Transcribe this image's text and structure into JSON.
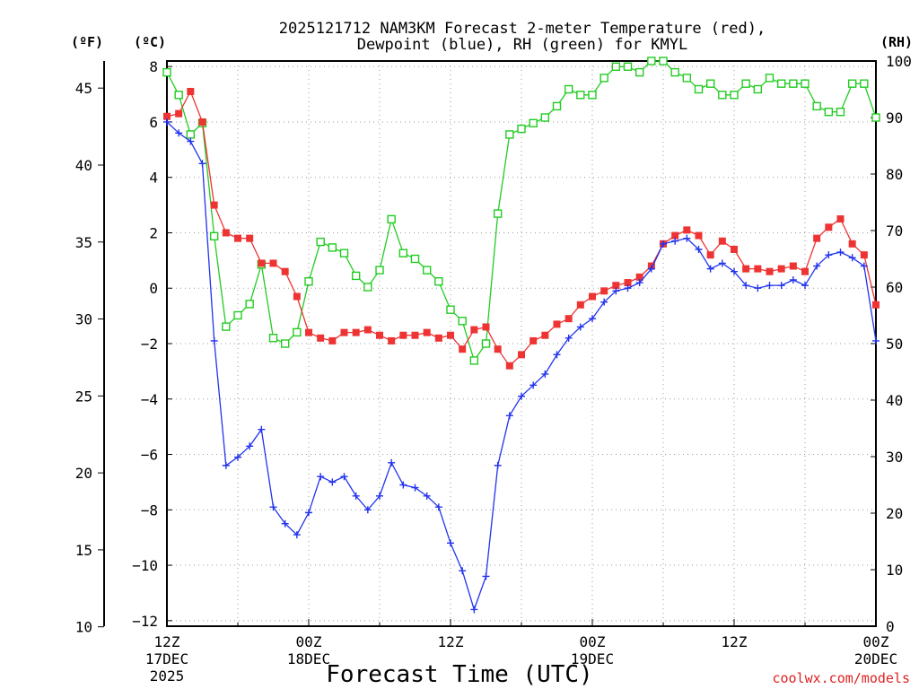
{
  "chart_data": {
    "type": "line",
    "title_line1": "2025121712 NAM3KM Forecast 2-meter Temperature (red),",
    "title_line2": "Dewpoint (blue), RH (green) for KMYL",
    "xlabel": "Forecast Time (UTC)",
    "credit": "coolwx.com/models",
    "left_outer_unit": "(ºF)",
    "left_inner_unit": "(ºC)",
    "right_unit": "(RH)",
    "x_range_hours": [
      0,
      60
    ],
    "celsius_ylim": [
      -12.2,
      8.2
    ],
    "fahrenheit_ylim": [
      10.04,
      46.76
    ],
    "rh_ylim": [
      0,
      100
    ],
    "celsius_ticks": [
      "8",
      "6",
      "4",
      "2",
      "0",
      "−2",
      "−4",
      "−6",
      "−8",
      "−10",
      "−12"
    ],
    "celsius_tick_values": [
      8,
      6,
      4,
      2,
      0,
      -2,
      -4,
      -6,
      -8,
      -10,
      -12
    ],
    "fahrenheit_ticks": [
      "45",
      "40",
      "35",
      "30",
      "25",
      "20",
      "15",
      "10"
    ],
    "fahrenheit_tick_values": [
      45,
      40,
      35,
      30,
      25,
      20,
      15,
      10
    ],
    "rh_ticks": [
      "100",
      "90",
      "80",
      "70",
      "60",
      "50",
      "40",
      "30",
      "20",
      "10",
      "0"
    ],
    "rh_tick_values": [
      100,
      90,
      80,
      70,
      60,
      50,
      40,
      30,
      20,
      10,
      0
    ],
    "x_ticks": [
      {
        "hour": 0,
        "line1": "12Z",
        "line2": "17DEC",
        "line3": "2025"
      },
      {
        "hour": 12,
        "line1": "00Z",
        "line2": "18DEC",
        "line3": ""
      },
      {
        "hour": 24,
        "line1": "12Z",
        "line2": "",
        "line3": ""
      },
      {
        "hour": 36,
        "line1": "00Z",
        "line2": "19DEC",
        "line3": ""
      },
      {
        "hour": 48,
        "line1": "12Z",
        "line2": "",
        "line3": ""
      },
      {
        "hour": 60,
        "line1": "00Z",
        "line2": "20DEC",
        "line3": ""
      }
    ],
    "x_minor_hours": [
      6,
      18,
      30,
      42,
      54
    ],
    "series": [
      {
        "name": "2-meter Temperature",
        "unit": "degC",
        "color": "#ee3333",
        "marker": "filled-square",
        "hours": [
          0,
          1,
          2,
          3,
          4,
          5,
          6,
          7,
          8,
          9,
          10,
          11,
          12,
          13,
          14,
          15,
          16,
          17,
          18,
          19,
          20,
          21,
          22,
          23,
          24,
          25,
          26,
          27,
          28,
          29,
          30,
          31,
          32,
          33,
          34,
          35,
          36,
          37,
          38,
          39,
          40,
          41,
          42,
          43,
          44,
          45,
          46,
          47,
          48,
          49,
          50,
          51,
          52,
          53,
          54,
          55,
          56,
          57,
          58,
          59,
          60
        ],
        "values": [
          6.2,
          6.3,
          7.1,
          6.0,
          3.0,
          2.0,
          1.8,
          1.8,
          0.9,
          0.9,
          0.6,
          -0.3,
          -1.6,
          -1.8,
          -1.9,
          -1.6,
          -1.6,
          -1.5,
          -1.7,
          -1.9,
          -1.7,
          -1.7,
          -1.6,
          -1.8,
          -1.7,
          -2.2,
          -1.5,
          -1.4,
          -2.2,
          -2.8,
          -2.4,
          -1.9,
          -1.7,
          -1.3,
          -1.1,
          -0.6,
          -0.3,
          -0.1,
          0.1,
          0.2,
          0.4,
          0.8,
          1.6,
          1.9,
          2.1,
          1.9,
          1.2,
          1.7,
          1.4,
          0.7,
          0.7,
          0.6,
          0.7,
          0.8,
          0.6,
          1.8,
          2.2,
          2.5,
          1.6,
          1.2,
          -0.6
        ]
      },
      {
        "name": "Dewpoint",
        "unit": "degC",
        "color": "#2233ee",
        "marker": "plus",
        "hours": [
          0,
          1,
          2,
          3,
          4,
          5,
          6,
          7,
          8,
          9,
          10,
          11,
          12,
          13,
          14,
          15,
          16,
          17,
          18,
          19,
          20,
          21,
          22,
          23,
          24,
          25,
          26,
          27,
          28,
          29,
          30,
          31,
          32,
          33,
          34,
          35,
          36,
          37,
          38,
          39,
          40,
          41,
          42,
          43,
          44,
          45,
          46,
          47,
          48,
          49,
          50,
          51,
          52,
          53,
          54,
          55,
          56,
          57,
          58,
          59,
          60
        ],
        "values": [
          6.0,
          5.6,
          5.3,
          4.5,
          -1.9,
          -6.4,
          -6.1,
          -5.7,
          -5.1,
          -7.9,
          -8.5,
          -8.9,
          -8.1,
          -6.8,
          -7.0,
          -6.8,
          -7.5,
          -8.0,
          -7.5,
          -6.3,
          -7.1,
          -7.2,
          -7.5,
          -7.9,
          -9.2,
          -10.2,
          -11.6,
          -10.4,
          -6.4,
          -4.6,
          -3.9,
          -3.5,
          -3.1,
          -2.4,
          -1.8,
          -1.4,
          -1.1,
          -0.5,
          -0.1,
          0.0,
          0.2,
          0.7,
          1.6,
          1.7,
          1.8,
          1.4,
          0.7,
          0.9,
          0.6,
          0.1,
          0.0,
          0.1,
          0.1,
          0.3,
          0.1,
          0.8,
          1.2,
          1.3,
          1.1,
          0.8,
          -1.9
        ]
      },
      {
        "name": "Relative Humidity",
        "unit": "percent",
        "color": "#22cc22",
        "marker": "open-square",
        "hours": [
          0,
          1,
          2,
          3,
          4,
          5,
          6,
          7,
          8,
          9,
          10,
          11,
          12,
          13,
          14,
          15,
          16,
          17,
          18,
          19,
          20,
          21,
          22,
          23,
          24,
          25,
          26,
          27,
          28,
          29,
          30,
          31,
          32,
          33,
          34,
          35,
          36,
          37,
          38,
          39,
          40,
          41,
          42,
          43,
          44,
          45,
          46,
          47,
          48,
          49,
          50,
          51,
          52,
          53,
          54,
          55,
          56,
          57,
          58,
          59,
          60
        ],
        "values": [
          98,
          94,
          87,
          89,
          69,
          53,
          55,
          57,
          64,
          51,
          50,
          52,
          61,
          68,
          67,
          66,
          62,
          60,
          63,
          72,
          66,
          65,
          63,
          61,
          56,
          54,
          47,
          50,
          73,
          87,
          88,
          89,
          90,
          92,
          95,
          94,
          94,
          97,
          99,
          99,
          98,
          100,
          100,
          98,
          97,
          95,
          96,
          94,
          94,
          96,
          95,
          97,
          96,
          96,
          96,
          92,
          91,
          91,
          96,
          96,
          90
        ]
      }
    ]
  }
}
